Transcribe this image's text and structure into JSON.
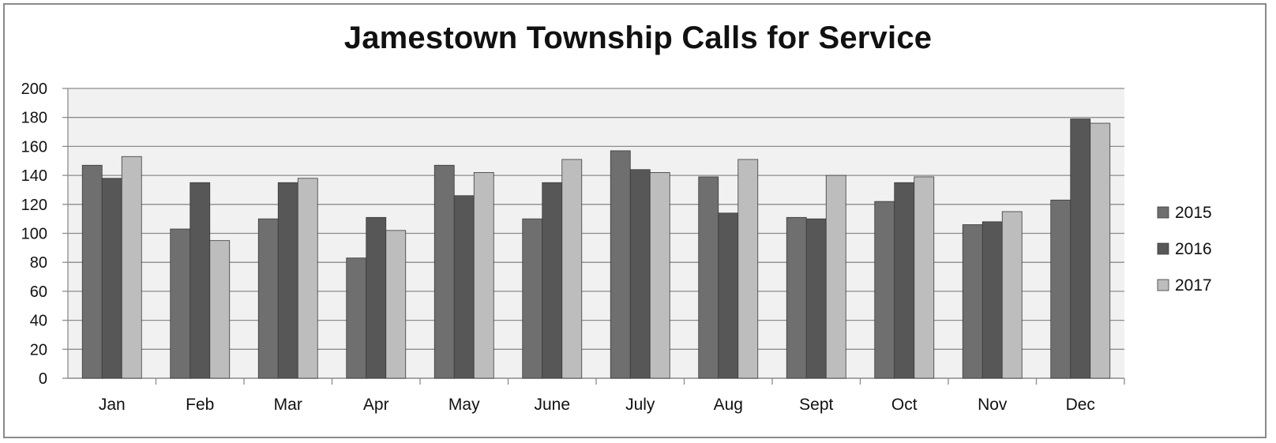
{
  "chart_data": {
    "type": "bar",
    "title": "Jamestown Township Calls for Service",
    "xlabel": "",
    "ylabel": "",
    "categories": [
      "Jan",
      "Feb",
      "Mar",
      "Apr",
      "May",
      "June",
      "July",
      "Aug",
      "Sept",
      "Oct",
      "Nov",
      "Dec"
    ],
    "series": [
      {
        "name": "2015",
        "color": "#6f6f6f",
        "values": [
          147,
          103,
          110,
          83,
          147,
          110,
          157,
          139,
          111,
          122,
          106,
          123
        ]
      },
      {
        "name": "2016",
        "color": "#575757",
        "values": [
          138,
          135,
          135,
          111,
          126,
          135,
          144,
          114,
          110,
          135,
          108,
          179
        ]
      },
      {
        "name": "2017",
        "color": "#bdbdbd",
        "values": [
          153,
          95,
          138,
          102,
          142,
          151,
          142,
          151,
          140,
          139,
          115,
          176
        ]
      }
    ],
    "ylim": [
      0,
      200
    ],
    "yticks": [
      0,
      20,
      40,
      60,
      80,
      100,
      120,
      140,
      160,
      180,
      200
    ],
    "grid": true,
    "legend_position": "right"
  }
}
